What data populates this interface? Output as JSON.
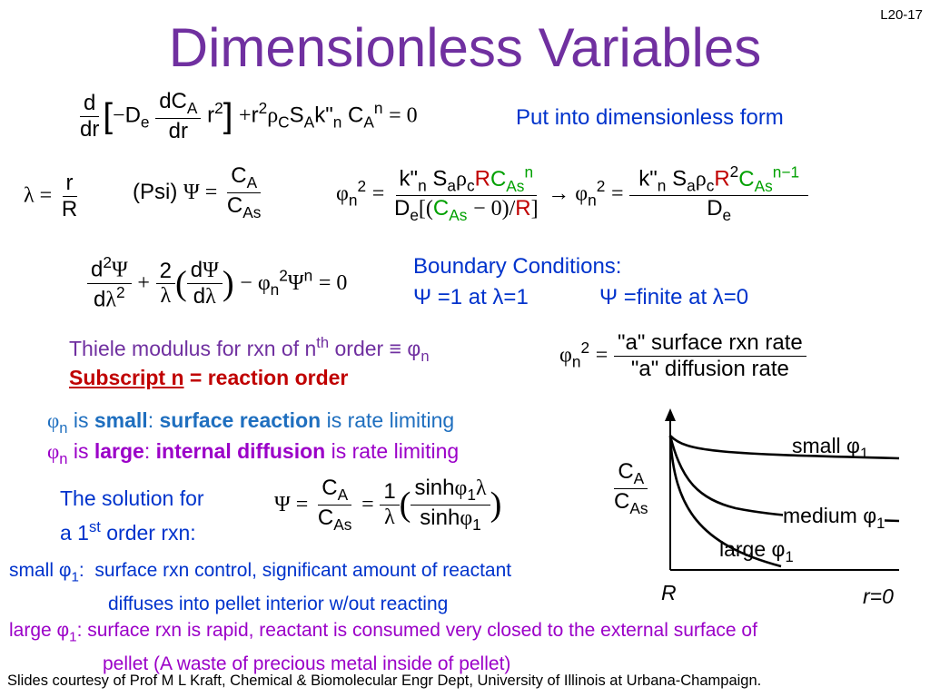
{
  "slide": {
    "number": "L20-17",
    "title": "Dimensionless Variables",
    "put_into_form": "Put into dimensionless form",
    "boundary_title": "Boundary Conditions:",
    "bc1": "Ψ =1 at λ=1",
    "bc2": "Ψ =finite at λ=0",
    "thiele_text": "Thiele modulus for rxn of n",
    "thiele_th": "th",
    "thiele_tail": " order ≡ φ",
    "thiele_n": "n",
    "subscript_n": "Subscript n",
    "reaction_order": " = reaction order",
    "thiele_ratio_num": "\"a\" surface rxn rate",
    "thiele_ratio_den": "\"a\"  diffusion rate",
    "line_small_1": " is ",
    "small_word": "small",
    "surface_reaction": "surface reaction",
    "rate_limiting": " is rate limiting",
    "large_word": "large",
    "internal_diffusion": "internal diffusion",
    "solution_line1": "The solution for",
    "solution_line2a": "a 1",
    "solution_st": "st",
    "solution_line2b": " order rxn:",
    "small_phi_label": "small φ",
    "small_phi_desc1": "surface rxn control, significant amount of reactant",
    "small_phi_desc2": "diffuses into pellet interior w/out reacting",
    "large_phi_label": "large φ",
    "large_phi_desc1": "surface rxn is rapid, reactant is consumed very closed to the external surface of",
    "large_phi_desc2": "pellet (A waste of precious metal inside of pellet)",
    "footer": "Slides courtesy of Prof M L Kraft, Chemical & Biomolecular Engr Dept, University of Illinois at Urbana-Champaign."
  },
  "graph": {
    "y_label_num": "C",
    "y_label_num_sub": "A",
    "y_label_den": "C",
    "y_label_den_sub": "As",
    "x_left": "R",
    "x_right": "r=0",
    "curve_small": "small φ",
    "curve_medium": "medium φ",
    "curve_large": "large φ",
    "curve_sub": "1"
  },
  "colors": {
    "title": "#7030a0",
    "blue_text": "#0033cc",
    "red_text": "#c00000",
    "green_text": "#00a000",
    "magenta_text": "#9b00c8"
  }
}
